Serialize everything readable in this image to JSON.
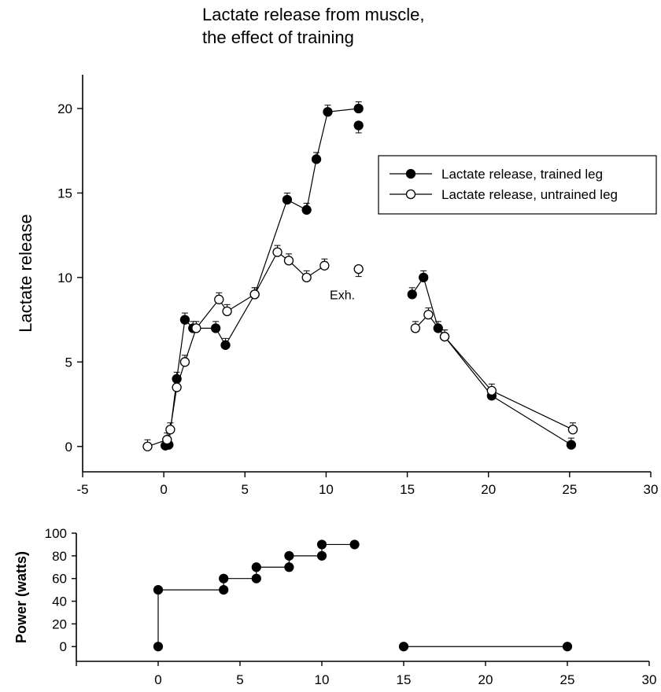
{
  "chart_data": [
    {
      "type": "line",
      "title_lines": [
        "Lactate release from muscle,",
        "the effect of training"
      ],
      "xlabel": "",
      "ylabel": "Lactate release",
      "xlim": [
        -5,
        30
      ],
      "ylim": [
        -1.5,
        22
      ],
      "xticks": [
        -5,
        0,
        5,
        10,
        15,
        20,
        25,
        30
      ],
      "yticks": [
        0,
        5,
        10,
        15,
        20
      ],
      "grid": false,
      "legend_position": "top-right",
      "annotation": {
        "text": "Exh.",
        "x": 11.0,
        "y": 9.0
      },
      "series": [
        {
          "name": "Lactate release, trained leg",
          "marker": "filled-circle",
          "segments": [
            [
              [
                0.1,
                0.05
              ],
              [
                0.3,
                0.1
              ],
              [
                0.8,
                4.0
              ],
              [
                1.3,
                7.5
              ],
              [
                1.8,
                7.0
              ],
              [
                3.2,
                7.0
              ],
              [
                3.8,
                6.0
              ],
              [
                5.6,
                9.0
              ],
              [
                7.6,
                14.6
              ],
              [
                8.8,
                14.0
              ],
              [
                9.4,
                17.0
              ],
              [
                10.1,
                19.8
              ],
              [
                12.0,
                20.0
              ]
            ],
            [
              [
                15.3,
                9.0
              ],
              [
                16.0,
                10.0
              ],
              [
                16.9,
                7.0
              ],
              [
                17.3,
                6.5
              ],
              [
                20.2,
                3.0
              ],
              [
                25.1,
                0.1
              ]
            ]
          ],
          "isolated_points": [
            [
              12.0,
              19.0
            ]
          ]
        },
        {
          "name": "Lactate release, untrained leg",
          "marker": "open-circle",
          "segments": [
            [
              [
                -1.0,
                0.0
              ],
              [
                0.2,
                0.4
              ],
              [
                0.4,
                1.0
              ],
              [
                0.8,
                3.5
              ],
              [
                1.3,
                5.0
              ],
              [
                2.0,
                7.0
              ],
              [
                3.4,
                8.7
              ],
              [
                3.9,
                8.0
              ],
              [
                5.6,
                9.0
              ],
              [
                7.0,
                11.5
              ],
              [
                7.7,
                11.0
              ],
              [
                8.8,
                10.0
              ],
              [
                9.9,
                10.7
              ]
            ],
            [
              [
                15.5,
                7.0
              ],
              [
                16.3,
                7.8
              ],
              [
                17.3,
                6.5
              ],
              [
                20.2,
                3.3
              ],
              [
                25.2,
                1.0
              ]
            ]
          ],
          "isolated_points": [
            [
              12.0,
              10.5
            ]
          ]
        }
      ]
    },
    {
      "type": "line",
      "xlabel": "",
      "ylabel": "Power (watts)",
      "xlim": [
        -5,
        30
      ],
      "ylim": [
        -13,
        100
      ],
      "xticks": [
        0,
        5,
        10,
        15,
        20,
        25,
        30
      ],
      "yticks": [
        0,
        20,
        40,
        60,
        80,
        100
      ],
      "grid": false,
      "series": [
        {
          "name": "",
          "marker": "filled-circle",
          "segments": [
            [
              [
                0,
                0
              ],
              [
                0,
                50
              ],
              [
                4,
                50
              ],
              [
                4,
                60
              ],
              [
                6,
                60
              ],
              [
                6,
                70
              ],
              [
                8,
                70
              ],
              [
                8,
                80
              ],
              [
                10,
                80
              ],
              [
                10,
                90
              ],
              [
                12,
                90
              ]
            ],
            [
              [
                15,
                0
              ],
              [
                25,
                0
              ]
            ]
          ]
        }
      ]
    }
  ]
}
